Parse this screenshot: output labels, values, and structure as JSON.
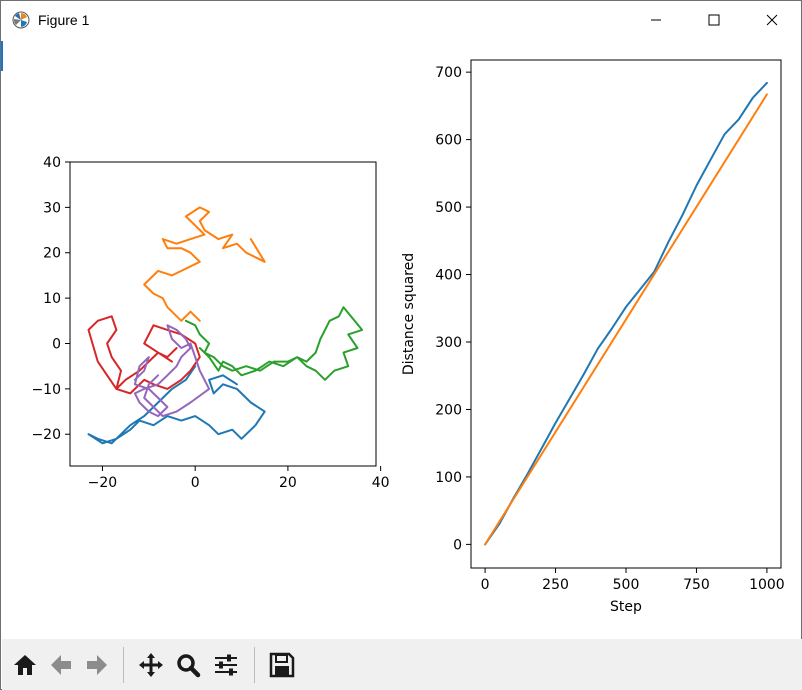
{
  "window": {
    "title": "Figure 1"
  },
  "toolbar": {
    "buttons": [
      "home-icon",
      "back-arrow-icon",
      "forward-arrow-icon",
      "pan-icon",
      "zoom-icon",
      "configure-subplots-icon",
      "save-icon"
    ]
  },
  "colors": {
    "c0": "#1f77b4",
    "c1": "#ff7f0e",
    "c2": "#2ca02c",
    "c3": "#d62728",
    "c4": "#9467bd"
  },
  "chart_data": [
    {
      "type": "line",
      "title": "",
      "xlabel": "",
      "ylabel": "",
      "xlim": [
        -27,
        39
      ],
      "ylim": [
        -27,
        40
      ],
      "xticks": [
        -20,
        0,
        20,
        40
      ],
      "yticks": [
        -20,
        -10,
        0,
        10,
        20,
        30,
        40
      ],
      "grid": false,
      "series": [
        {
          "color": "#1f77b4",
          "x": [
            0,
            -2,
            -5,
            -8,
            -11,
            -14,
            -16,
            -18,
            -21,
            -23,
            -20,
            -17,
            -14,
            -12,
            -9,
            -6,
            -3,
            0,
            3,
            5,
            8,
            10,
            13,
            15,
            12,
            9,
            6,
            4,
            3,
            6,
            9
          ],
          "y": [
            -5,
            -8,
            -10,
            -13,
            -16,
            -18,
            -20,
            -22,
            -21,
            -20,
            -22,
            -21,
            -19,
            -17,
            -18,
            -16,
            -17,
            -16,
            -18,
            -20,
            -19,
            -21,
            -18,
            -15,
            -13,
            -10,
            -9,
            -11,
            -8,
            -7,
            -9
          ]
        },
        {
          "color": "#ff7f0e",
          "x": [
            1,
            -1,
            -3,
            -6,
            -7,
            -9,
            -11,
            -8,
            -5,
            -3,
            -1,
            1,
            -1,
            -3,
            -6,
            -7,
            -4,
            -1,
            2,
            0,
            -2,
            1,
            3,
            1,
            2,
            5,
            8,
            6,
            9,
            11,
            13,
            15,
            12
          ],
          "y": [
            5,
            7,
            5,
            8,
            10,
            11,
            13,
            16,
            15,
            16,
            17,
            18,
            20,
            21,
            21,
            23,
            22,
            23,
            24,
            26,
            28,
            30,
            29,
            27,
            25,
            23,
            24,
            21,
            22,
            20,
            19,
            18,
            23
          ]
        },
        {
          "color": "#2ca02c",
          "x": [
            -2,
            0,
            1,
            3,
            2,
            4,
            6,
            8,
            11,
            14,
            17,
            20,
            22,
            24,
            26,
            28,
            30,
            33,
            32,
            35,
            33,
            36,
            32,
            31,
            29,
            27,
            26,
            24,
            22,
            19,
            16,
            13,
            10,
            8,
            6,
            5,
            3,
            1
          ],
          "y": [
            5,
            4,
            2,
            0,
            -2,
            -3,
            -5,
            -6,
            -5,
            -6,
            -4,
            -4,
            -3,
            -5,
            -6,
            -8,
            -6,
            -5,
            -2,
            -1,
            2,
            3,
            8,
            6,
            5,
            1,
            -2,
            -4,
            -3,
            -5,
            -4,
            -6,
            -7,
            -5,
            -4,
            -6,
            -3,
            -1
          ]
        },
        {
          "color": "#d62728",
          "x": [
            -4,
            -6,
            -8,
            -10,
            -12,
            -15,
            -17,
            -19,
            -21,
            -23,
            -21,
            -18,
            -17,
            -19,
            -18,
            -16,
            -17,
            -14,
            -11,
            -9,
            -6,
            -3,
            -1,
            1,
            0,
            -3,
            -6,
            -9,
            -11,
            -8,
            -5
          ],
          "y": [
            -1,
            -3,
            -2,
            -4,
            -6,
            -8,
            -10,
            -7,
            -4,
            3,
            5,
            6,
            3,
            0,
            -3,
            -6,
            -10,
            -11,
            -8,
            -9,
            -10,
            -8,
            -6,
            -3,
            0,
            2,
            3,
            4,
            0,
            -2,
            -4
          ]
        },
        {
          "color": "#9467bd",
          "x": [
            -13,
            -11,
            -10,
            -12,
            -13,
            -10,
            -8,
            -6,
            -8,
            -10,
            -12,
            -13,
            -11,
            -8,
            -6,
            -4,
            -3,
            -1,
            -2,
            -4,
            -6,
            -5,
            -3,
            -1,
            0,
            1,
            3,
            -1,
            -4,
            -7,
            -9,
            -11,
            -10,
            -8
          ],
          "y": [
            -8,
            -6,
            -3,
            -5,
            -9,
            -10,
            -12,
            -14,
            -16,
            -15,
            -13,
            -11,
            -10,
            -9,
            -7,
            -5,
            -3,
            -1,
            1,
            3,
            4,
            1,
            -1,
            0,
            -3,
            -6,
            -10,
            -13,
            -15,
            -16,
            -14,
            -12,
            -9,
            -7
          ]
        }
      ]
    },
    {
      "type": "line",
      "title": "",
      "xlabel": "Step",
      "ylabel": "Distance squared",
      "xlim": [
        -50,
        1050
      ],
      "ylim": [
        -35,
        718
      ],
      "xticks": [
        0,
        250,
        500,
        750,
        1000
      ],
      "yticks": [
        0,
        100,
        200,
        300,
        400,
        500,
        600,
        700
      ],
      "grid": false,
      "series": [
        {
          "color": "#1f77b4",
          "x": [
            0,
            50,
            100,
            150,
            200,
            250,
            300,
            350,
            400,
            450,
            500,
            550,
            600,
            650,
            700,
            750,
            800,
            850,
            900,
            950,
            1000
          ],
          "y": [
            0,
            30,
            68,
            104,
            142,
            180,
            216,
            252,
            290,
            320,
            352,
            378,
            404,
            448,
            488,
            532,
            570,
            608,
            630,
            662,
            684
          ]
        },
        {
          "color": "#ff7f0e",
          "x": [
            0,
            1000
          ],
          "y": [
            0,
            667
          ]
        }
      ]
    }
  ]
}
